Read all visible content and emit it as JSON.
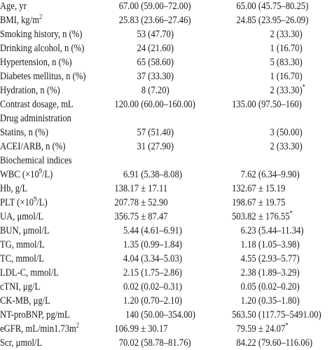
{
  "rows": [
    {
      "label": "Age, yr",
      "g1": [
        "67.00",
        "(59.00–72.00)"
      ],
      "g2": [
        "65.00",
        "(45.75–80.25)"
      ]
    },
    {
      "label": "BMI, kg/m",
      "g1": [
        "25.83",
        "(23.66–27.46)"
      ],
      "g2": [
        "24.85",
        "(23.95–26.09)"
      ]
    },
    {
      "label": "Smoking history, n (%)",
      "g1": [
        "53",
        "(47.70)"
      ],
      "g2": [
        "2",
        "(33.30)"
      ]
    },
    {
      "label": "Drinking alcohol, n (%)",
      "g1": [
        "24",
        "(21.60)"
      ],
      "g2": [
        "1",
        "(16.70)"
      ]
    },
    {
      "label": "Hypertension, n (%)",
      "g1": [
        "65",
        "(58.60)"
      ],
      "g2": [
        "5",
        "(83.30)"
      ]
    },
    {
      "label": "Diabetes mellitus, n (%)",
      "g1": [
        "37",
        "(33.30)"
      ],
      "g2": [
        "1",
        "(16.70)"
      ]
    },
    {
      "label": "Hydration, n (%)",
      "g1": [
        "8",
        "(7.20)"
      ],
      "g2": [
        "2",
        "(33.30)"
      ]
    },
    {
      "label": "Contrast dosage, mL",
      "g1": [
        "120.00",
        "(60.00–160.00)"
      ],
      "g2": [
        "135.00",
        "(97.50–160)"
      ]
    },
    {
      "label": "Drug administration",
      "g1": [
        "",
        ""
      ],
      "g2": [
        "",
        ""
      ]
    },
    {
      "label": "Statins, n (%)",
      "g1": [
        "57",
        "(51.40)"
      ],
      "g2": [
        "3",
        "(50.00)"
      ]
    },
    {
      "label": "ACEI/ARB, n (%)",
      "g1": [
        "31",
        "(27.90)"
      ],
      "g2": [
        "2",
        "(33.30)"
      ]
    },
    {
      "label": "Biochemical indices",
      "g1": [
        "",
        ""
      ],
      "g2": [
        "",
        ""
      ]
    },
    {
      "label": "WBC (×10",
      "g1": [
        "6.91",
        "(5.38–8.08)"
      ],
      "g2": [
        "7.62",
        "(6.34–9.90)"
      ]
    },
    {
      "label": "Hb, g/L",
      "g1": [
        "138.17",
        "± 17.11"
      ],
      "g2": [
        "132.67",
        "± 15.19"
      ]
    },
    {
      "label": "PLT (×10",
      "g1": [
        "207.78",
        "± 52.90"
      ],
      "g2": [
        "198.67",
        "± 19.75"
      ]
    },
    {
      "label": "UA, μmol/L",
      "g1": [
        "356.75",
        "± 87.47"
      ],
      "g2": [
        "503.82",
        "± 176.55"
      ]
    },
    {
      "label": "BUN, μmol/L",
      "g1": [
        "5.44",
        "(4.61–6.91)"
      ],
      "g2": [
        "6.23",
        "(5.44–11.34)"
      ]
    },
    {
      "label": "TG, mmol/L",
      "g1": [
        "1.35",
        "(0.99–1.84)"
      ],
      "g2": [
        "1.18",
        "(1.05–3.98)"
      ]
    },
    {
      "label": "TC, mmol/L",
      "g1": [
        "4.04",
        "(3.34–5.03)"
      ],
      "g2": [
        "4.55",
        "(2.93–5.77)"
      ]
    },
    {
      "label": "LDL-C, mmol/L",
      "g1": [
        "2.15",
        "(1.75–2.86)"
      ],
      "g2": [
        "2.38",
        "(1.89–3.29)"
      ]
    },
    {
      "label": "cTNI, μg/L",
      "g1": [
        "0.02",
        "(0.02–0.31)"
      ],
      "g2": [
        "0.05",
        "(0.02–0.20)"
      ]
    },
    {
      "label": "CK-MB, μg/L",
      "g1": [
        "1.20",
        "(0.70–2.10)"
      ],
      "g2": [
        "1.20",
        "(0.35–1.80)"
      ]
    },
    {
      "label": "NT-proBNP, pg/mL",
      "g1": [
        "140",
        "(50.00–354.00)"
      ],
      "g2": [
        "563.50",
        "(117.75–5491.00)"
      ]
    },
    {
      "label": "eGFR, mL/min1.73m",
      "g1": [
        "106.99",
        "± 30.17"
      ],
      "g2": [
        "79.59",
        "± 24.07"
      ]
    },
    {
      "label": "Scr, μmol/L",
      "g1": [
        "70.02",
        "(58.78–81.76)"
      ],
      "g2": [
        "84.22",
        "(79.60–116.06)"
      ]
    }
  ],
  "superscripts": {
    "squared": "2",
    "nine": "9",
    "asterisk": "*"
  }
}
